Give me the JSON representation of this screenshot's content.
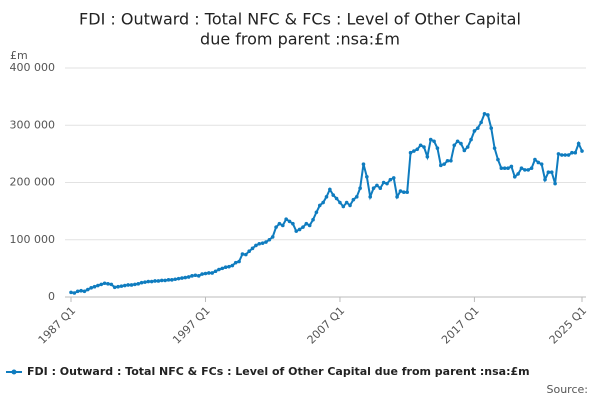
{
  "chart_data": {
    "type": "line",
    "title": [
      "FDI : Outward : Total NFC & FCs : Level of Other Capital",
      "due from parent :nsa:£m"
    ],
    "y_unit": "£m",
    "source": "Source:",
    "categories": [
      "1987 Q1",
      null,
      null,
      null,
      null,
      null,
      null,
      null,
      null,
      null,
      null,
      null,
      null,
      null,
      null,
      null,
      null,
      null,
      null,
      null,
      null,
      null,
      null,
      null,
      null,
      null,
      null,
      null,
      null,
      null,
      null,
      null,
      null,
      null,
      null,
      null,
      null,
      null,
      null,
      null,
      "1997 Q1",
      null,
      null,
      null,
      null,
      null,
      null,
      null,
      null,
      null,
      null,
      null,
      null,
      null,
      null,
      null,
      null,
      null,
      null,
      null,
      null,
      null,
      null,
      null,
      null,
      null,
      null,
      null,
      null,
      null,
      null,
      null,
      null,
      null,
      null,
      null,
      null,
      null,
      null,
      null,
      "2007 Q1",
      null,
      null,
      null,
      null,
      null,
      null,
      null,
      null,
      null,
      null,
      null,
      null,
      null,
      null,
      null,
      null,
      null,
      null,
      null,
      null,
      null,
      null,
      null,
      null,
      null,
      null,
      null,
      null,
      null,
      null,
      null,
      null,
      null,
      null,
      null,
      null,
      null,
      null,
      null,
      "2017 Q1",
      null,
      null,
      null,
      null,
      null,
      null,
      null,
      null,
      null,
      null,
      null,
      null,
      null,
      null,
      null,
      null,
      null,
      null,
      null,
      null,
      null,
      null,
      null,
      null,
      null,
      null,
      null,
      null,
      null,
      null,
      null,
      "2025 Q1"
    ],
    "series": [
      {
        "name": "FDI : Outward : Total NFC & FCs : Level of Other Capital due from parent :nsa:£m",
        "color": "#0f7cbf",
        "values": [
          8000,
          7000,
          10000,
          11000,
          10000,
          13000,
          16000,
          18000,
          20000,
          22000,
          24000,
          23000,
          22000,
          17000,
          18000,
          19000,
          20000,
          21000,
          21000,
          22000,
          23000,
          25000,
          26000,
          27000,
          27000,
          28000,
          28000,
          29000,
          29000,
          30000,
          30000,
          31000,
          32000,
          33000,
          34000,
          35000,
          37000,
          38000,
          37000,
          40000,
          41000,
          42000,
          42000,
          45000,
          48000,
          50000,
          52000,
          53000,
          55000,
          60000,
          62000,
          75000,
          74000,
          80000,
          85000,
          90000,
          93000,
          94000,
          96000,
          100000,
          105000,
          122000,
          128000,
          125000,
          136000,
          132000,
          128000,
          115000,
          118000,
          122000,
          128000,
          125000,
          135000,
          148000,
          160000,
          165000,
          175000,
          188000,
          178000,
          172000,
          165000,
          158000,
          165000,
          160000,
          170000,
          175000,
          190000,
          232000,
          210000,
          175000,
          190000,
          195000,
          190000,
          200000,
          198000,
          205000,
          208000,
          175000,
          185000,
          183000,
          183000,
          252000,
          255000,
          258000,
          265000,
          262000,
          245000,
          275000,
          272000,
          260000,
          230000,
          232000,
          238000,
          238000,
          265000,
          272000,
          268000,
          256000,
          262000,
          275000,
          290000,
          295000,
          305000,
          320000,
          318000,
          295000,
          260000,
          240000,
          225000,
          225000,
          225000,
          228000,
          210000,
          215000,
          225000,
          222000,
          222000,
          225000,
          240000,
          235000,
          232000,
          205000,
          218000,
          218000,
          198000,
          250000,
          248000,
          248000,
          248000,
          252000,
          252000,
          268000,
          255000
        ]
      }
    ],
    "ylim": [
      0,
      400000
    ],
    "yticks": [
      0,
      {
        "value": 100000,
        "label": "100 000"
      },
      {
        "value": 200000,
        "label": "200 000"
      },
      {
        "value": 300000,
        "label": "300 000"
      },
      {
        "value": 400000,
        "label": "400 000"
      }
    ],
    "grid": true
  }
}
